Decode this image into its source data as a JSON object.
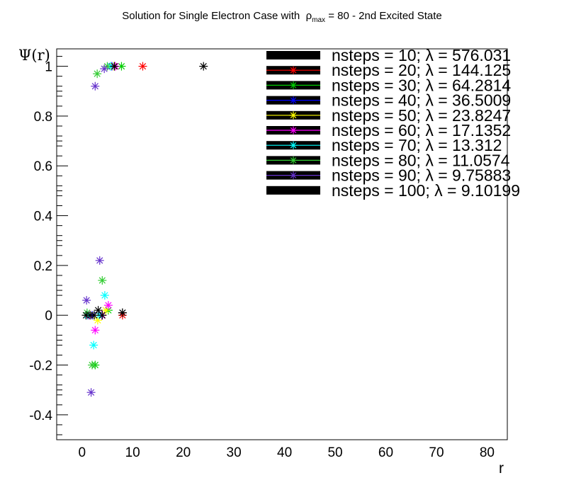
{
  "title_prefix": "Solution for Single Electron Case with",
  "title_rho": "ρ",
  "title_sub": "max",
  "title_suffix": "= 80 - 2nd Excited State",
  "chart_data": {
    "type": "scatter",
    "title": "Solution for Single Electron Case with ρmax = 80 - 2nd Excited State",
    "xlabel": "r",
    "ylabel": "Ψ(r)",
    "xlim": [
      -5,
      84
    ],
    "ylim": [
      -0.5,
      1.07
    ],
    "xticks": [
      0,
      10,
      20,
      30,
      40,
      50,
      60,
      70,
      80
    ],
    "yticks": [
      -0.4,
      -0.2,
      0,
      0.2,
      0.4,
      0.6,
      0.8,
      1
    ],
    "ytick_labels": [
      "-0.4",
      "-0.2",
      "0",
      "0.2",
      "0.4",
      "0.6",
      "0.8",
      "1"
    ],
    "legend_position": "top-right",
    "marker": "star",
    "series": [
      {
        "name": "nsteps = 10; λ = 576.031",
        "color": "#000000",
        "nsteps": 10,
        "x": [
          8.0,
          24.0
        ],
        "y": [
          0.01,
          1.0
        ]
      },
      {
        "name": "nsteps = 20; λ = 144.125",
        "color": "#ff0000",
        "nsteps": 20,
        "x": [
          4.0,
          8.0,
          12.0
        ],
        "y": [
          0.0,
          0.0,
          1.0
        ]
      },
      {
        "name": "nsteps = 30; λ = 64.2814",
        "color": "#00cc00",
        "nsteps": 30,
        "x": [
          2.6,
          5.2,
          7.8
        ],
        "y": [
          -0.2,
          0.02,
          1.0
        ]
      },
      {
        "name": "nsteps = 40; λ = 36.5009",
        "color": "#0000ff",
        "nsteps": 40,
        "x": [
          2.0,
          3.9,
          5.9
        ],
        "y": [
          0.0,
          0.0,
          1.0
        ]
      },
      {
        "name": "nsteps = 50; λ = 23.8247",
        "color": "#ffff00",
        "nsteps": 50,
        "x": [
          1.6,
          3.1,
          4.7,
          6.3
        ],
        "y": [
          0.0,
          -0.02,
          0.02,
          1.0
        ]
      },
      {
        "name": "nsteps = 60; λ = 17.1352",
        "color": "#ff00ff",
        "nsteps": 60,
        "x": [
          1.3,
          2.6,
          3.9,
          5.2,
          6.6
        ],
        "y": [
          0.0,
          -0.06,
          0.0,
          0.04,
          1.0
        ]
      },
      {
        "name": "nsteps = 70; λ = 13.312",
        "color": "#00ffff",
        "nsteps": 70,
        "x": [
          1.1,
          2.3,
          3.4,
          4.5,
          5.6
        ],
        "y": [
          0.0,
          -0.12,
          0.0,
          0.08,
          1.0
        ]
      },
      {
        "name": "nsteps = 80; λ = 11.0574",
        "color": "#33cc33",
        "nsteps": 80,
        "x": [
          1.0,
          2.0,
          3.0,
          4.0,
          5.0
        ],
        "y": [
          0.01,
          -0.2,
          0.97,
          0.14,
          1.0
        ]
      },
      {
        "name": "nsteps = 90; λ = 9.75883",
        "color": "#6633cc",
        "nsteps": 90,
        "x": [
          0.9,
          1.8,
          2.6,
          3.5,
          4.4
        ],
        "y": [
          0.06,
          -0.31,
          0.92,
          0.22,
          0.99
        ]
      },
      {
        "name": "nsteps = 100; λ = 9.10199",
        "color": "#000000",
        "nsteps": 100,
        "x": [
          0.8,
          1.6,
          2.4,
          3.2,
          4.0,
          6.4,
          8.0
        ],
        "y": [
          0.0,
          0.0,
          0.0,
          0.02,
          0.0,
          1.0,
          0.01
        ]
      }
    ]
  }
}
